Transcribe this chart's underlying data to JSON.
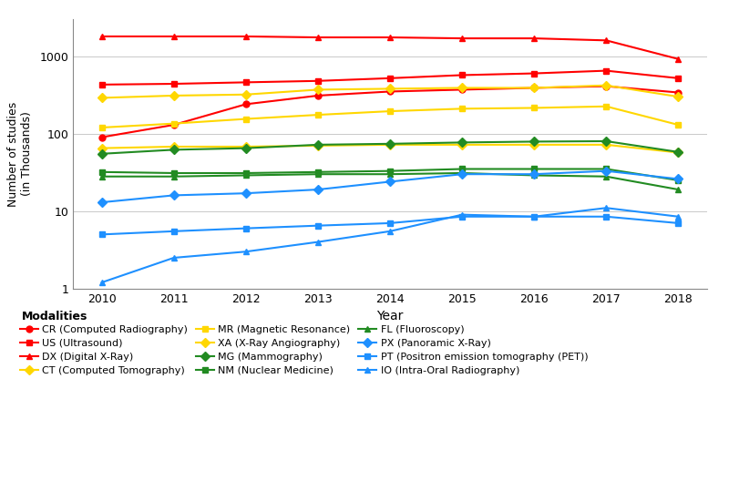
{
  "years": [
    2010,
    2011,
    2012,
    2013,
    2014,
    2015,
    2016,
    2017,
    2018
  ],
  "series": [
    {
      "label": "CR (Computed Radiography)",
      "color": "#FF0000",
      "marker": "o",
      "values": [
        90,
        130,
        240,
        310,
        350,
        370,
        390,
        410,
        340
      ]
    },
    {
      "label": "US (Ultrasound)",
      "color": "#FF0000",
      "marker": "s",
      "values": [
        430,
        440,
        460,
        480,
        520,
        570,
        600,
        650,
        520
      ]
    },
    {
      "label": "DX (Digital X-Ray)",
      "color": "#FF0000",
      "marker": "^",
      "values": [
        1800,
        1800,
        1800,
        1750,
        1750,
        1700,
        1700,
        1600,
        920
      ]
    },
    {
      "label": "CT (Computed Tomography)",
      "color": "#FFD700",
      "marker": "D",
      "values": [
        290,
        310,
        320,
        370,
        380,
        390,
        390,
        420,
        300
      ]
    },
    {
      "label": "MR (Magnetic Resonance)",
      "color": "#FFD700",
      "marker": "s",
      "values": [
        120,
        135,
        155,
        175,
        195,
        210,
        215,
        225,
        130
      ]
    },
    {
      "label": "XA (X-Ray Angiography)",
      "color": "#FFD700",
      "marker": "D",
      "values": [
        65,
        68,
        68,
        70,
        72,
        72,
        72,
        72,
        57
      ]
    },
    {
      "label": "MG (Mammography)",
      "color": "#228B22",
      "marker": "D",
      "values": [
        55,
        62,
        65,
        72,
        74,
        77,
        79,
        80,
        58
      ]
    },
    {
      "label": "NM (Nuclear Medicine)",
      "color": "#228B22",
      "marker": "s",
      "values": [
        32,
        31,
        31,
        32,
        33,
        35,
        35,
        35,
        25
      ]
    },
    {
      "label": "FL (Fluoroscopy)",
      "color": "#228B22",
      "marker": "^",
      "values": [
        28,
        28,
        29,
        30,
        30,
        31,
        29,
        28,
        19
      ]
    },
    {
      "label": "PX (Panoramic X-Ray)",
      "color": "#1E90FF",
      "marker": "D",
      "values": [
        13,
        16,
        17,
        19,
        24,
        30,
        30,
        33,
        26
      ]
    },
    {
      "label": "PT (Positron emission tomography (PET))",
      "color": "#1E90FF",
      "marker": "s",
      "values": [
        5,
        5.5,
        6,
        6.5,
        7,
        8.5,
        8.5,
        8.5,
        7
      ]
    },
    {
      "label": "IO (Intra-Oral Radiography)",
      "color": "#1E90FF",
      "marker": "^",
      "values": [
        1.2,
        2.5,
        3,
        4,
        5.5,
        9,
        8.5,
        11,
        8.5
      ]
    }
  ],
  "xlabel": "Year",
  "ylabel": "Number of studies\n(in Thousands)",
  "legend_title": "Modalities",
  "background_color": "#FFFFFF",
  "grid_color": "#C0C0C0",
  "ylim": [
    1,
    3000
  ],
  "yticks": [
    1,
    10,
    100,
    1000
  ],
  "yticklabels": [
    "1",
    "10",
    "100",
    "1000"
  ],
  "fig_width": 8.0,
  "fig_height": 5.28,
  "dpi": 100
}
